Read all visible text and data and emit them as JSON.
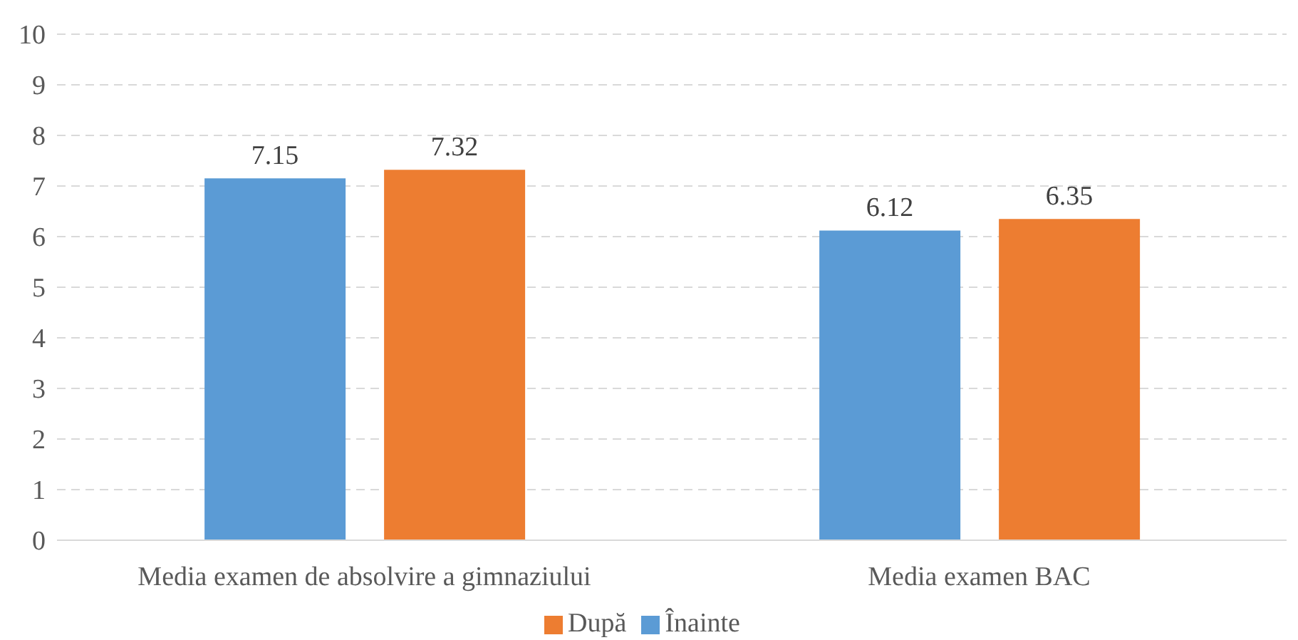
{
  "chart_data": {
    "type": "bar",
    "categories": [
      "Media examen de absolvire a gimnaziului",
      "Media examen BAC"
    ],
    "series": [
      {
        "name": "Înainte",
        "color": "#5b9bd5",
        "values": [
          7.15,
          6.12
        ]
      },
      {
        "name": "După",
        "color": "#ed7d31",
        "values": [
          7.32,
          6.35
        ]
      }
    ],
    "ylim": [
      0,
      10
    ],
    "yticks": [
      0,
      1,
      2,
      3,
      4,
      5,
      6,
      7,
      8,
      9,
      10
    ],
    "grid": "y",
    "legend": "bottom",
    "data_labels": true
  }
}
